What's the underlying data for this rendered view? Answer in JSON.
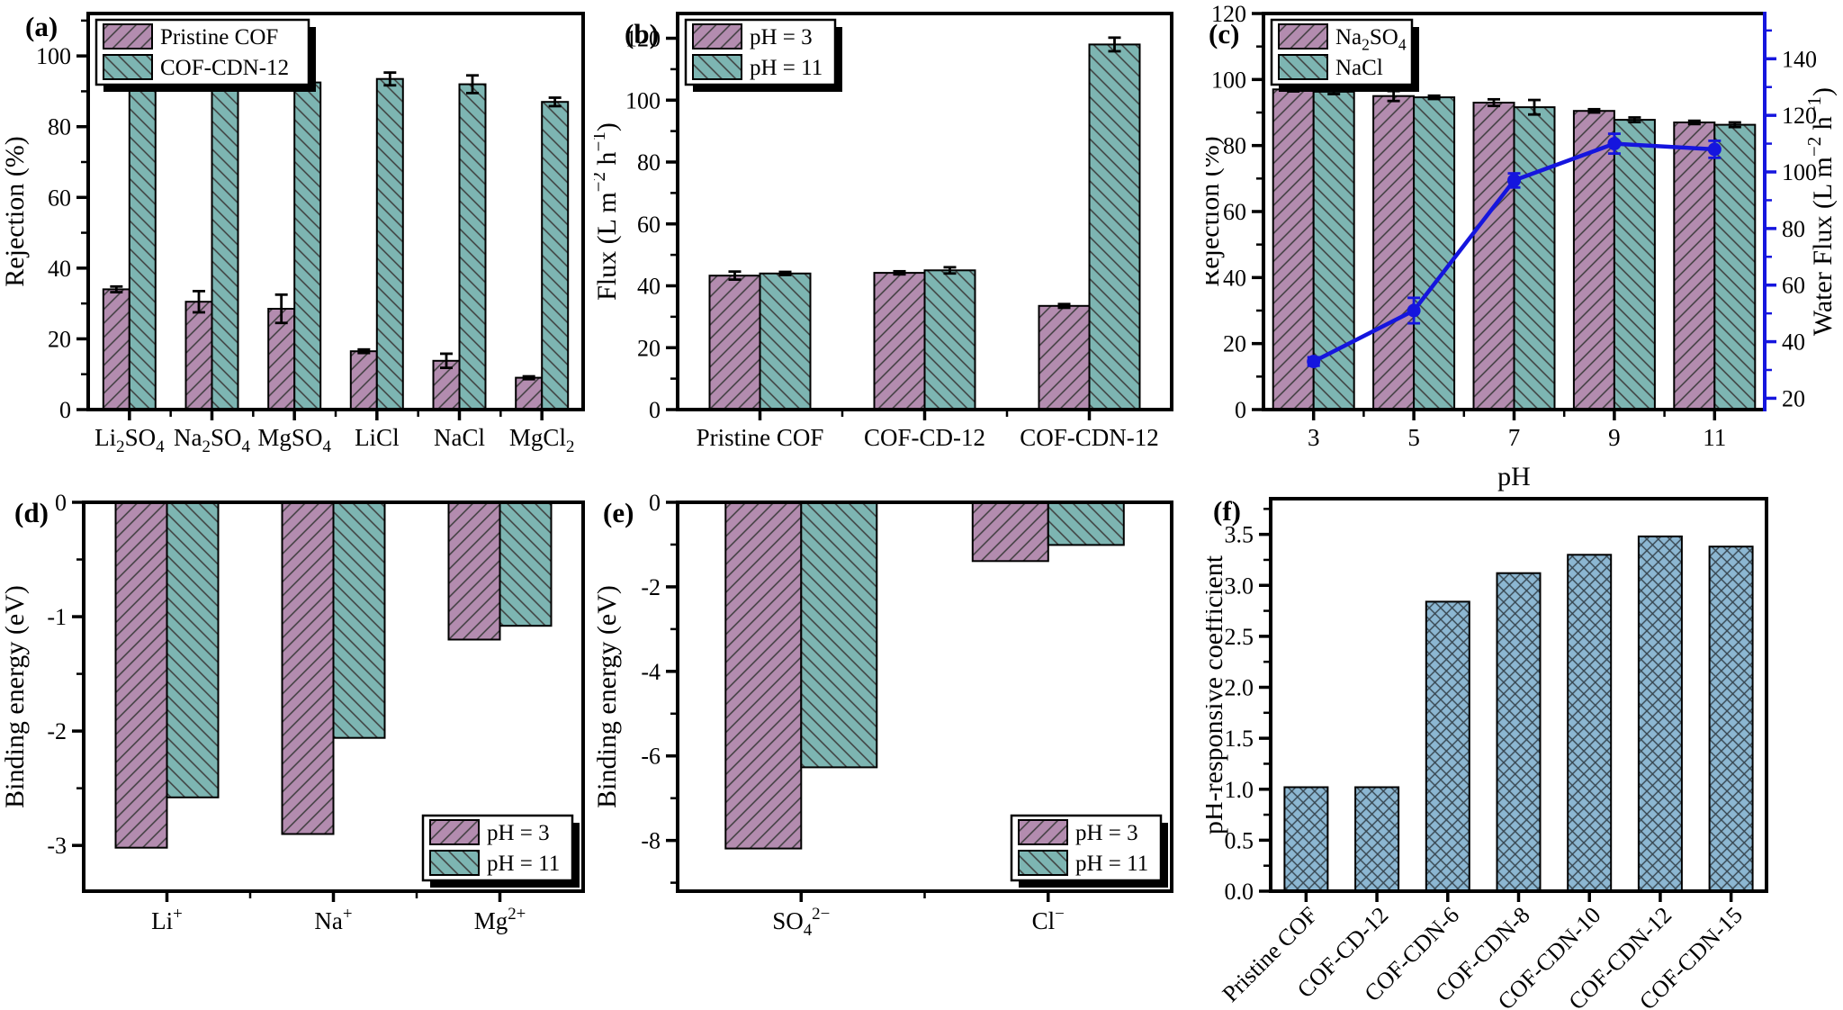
{
  "figure": {
    "background": "#ffffff"
  },
  "colors": {
    "purple": "#B38CAF",
    "teal": "#7DB5B2",
    "blue_bar": "#8CB7D2",
    "line_blue": "#1515DE",
    "hatch": "#3C3C3C",
    "hatch_blue": "#36454F",
    "axis": "#000000"
  },
  "chart_data": [
    {
      "panel": "(a)",
      "type": "bar",
      "ylabel": "Rejection (%)",
      "ylim": [
        0,
        112
      ],
      "yticks": [
        0,
        20,
        40,
        60,
        80,
        100
      ],
      "y_minor_step": 10,
      "categories": [
        "Li~2~SO~4~",
        "Na~2~SO~4~",
        "MgSO~4~",
        "LiCl",
        "NaCl",
        "MgCl~2~"
      ],
      "series": [
        {
          "name": "Pristine COF",
          "color": "purple",
          "hatch": "/",
          "values": [
            34,
            30.5,
            28.5,
            16.5,
            13.8,
            9
          ],
          "errors": [
            0.8,
            3,
            4,
            0.5,
            2,
            0.4
          ]
        },
        {
          "name": "COF-CDN-12",
          "color": "teal",
          "hatch": "\\",
          "values": [
            94,
            93.5,
            92.5,
            93.5,
            92,
            87
          ],
          "errors": [
            0.6,
            1,
            0.4,
            1.8,
            2.5,
            1.2
          ]
        }
      ],
      "legend_pos": "top-left"
    },
    {
      "panel": "(b)",
      "type": "bar",
      "ylabel": "Flux (L m^−2^ h^−1^)",
      "ylim": [
        0,
        128
      ],
      "yticks": [
        0,
        20,
        40,
        60,
        80,
        100,
        120
      ],
      "y_minor_step": 10,
      "categories": [
        "Pristine COF",
        "COF-CD-12",
        "COF-CDN-12"
      ],
      "series": [
        {
          "name": "pH = 3",
          "color": "purple",
          "hatch": "/",
          "values": [
            43.3,
            44.2,
            33.5
          ],
          "errors": [
            1.3,
            0.5,
            0.6
          ]
        },
        {
          "name": "pH = 11",
          "color": "teal",
          "hatch": "\\",
          "values": [
            44,
            45,
            118
          ],
          "errors": [
            0.5,
            1,
            2.2
          ]
        }
      ],
      "legend_pos": "top-left"
    },
    {
      "panel": "(c)",
      "type": "bar",
      "ylabel": "Rejection (%)",
      "xlabel": "pH",
      "ylim": [
        0,
        120
      ],
      "yticks": [
        0,
        20,
        40,
        60,
        80,
        100,
        120
      ],
      "y_minor_step": 10,
      "categories": [
        "3",
        "5",
        "7",
        "9",
        "11"
      ],
      "series": [
        {
          "name": "Na~2~SO~4~",
          "color": "purple",
          "hatch": "/",
          "values": [
            97,
            95,
            93,
            90.5,
            87
          ],
          "errors": [
            0.6,
            1.5,
            1,
            0.5,
            0.5
          ]
        },
        {
          "name": "NaCl",
          "color": "teal",
          "hatch": "\\",
          "values": [
            96.3,
            94.6,
            91.6,
            87.8,
            86.3
          ],
          "errors": [
            0.7,
            0.5,
            2.2,
            0.7,
            0.7
          ]
        }
      ],
      "line_series": {
        "name": "Water Flux",
        "values": [
          33,
          51,
          97,
          110,
          108
        ],
        "errors": [
          1.5,
          4.5,
          2.5,
          3.5,
          3
        ]
      },
      "right_axis": {
        "label": "Water Flux (L m^−2^ h^−1^)",
        "lim": [
          16,
          156
        ],
        "ticks": [
          20,
          40,
          60,
          80,
          100,
          120,
          140
        ],
        "minor_step": 10
      },
      "legend_pos": "top-left"
    },
    {
      "panel": "(d)",
      "type": "bar",
      "ylabel": "Binding energy (eV)",
      "ylim": [
        -3.4,
        0
      ],
      "yticks": [
        0,
        -1,
        -2,
        -3
      ],
      "y_minor_step": 0.5,
      "categories": [
        "Li^+^",
        "Na^+^",
        "Mg^2+^"
      ],
      "series": [
        {
          "name": "pH = 3",
          "color": "purple",
          "hatch": "/",
          "values": [
            -3.02,
            -2.9,
            -1.2
          ]
        },
        {
          "name": "pH = 11",
          "color": "teal",
          "hatch": "\\",
          "values": [
            -2.58,
            -2.06,
            -1.08
          ]
        }
      ],
      "legend_pos": "bottom-right"
    },
    {
      "panel": "(e)",
      "type": "bar",
      "ylabel": "Binding energy (eV)",
      "ylim": [
        -9.2,
        0
      ],
      "yticks": [
        0,
        -2,
        -4,
        -6,
        -8
      ],
      "y_minor_step": 1,
      "categories": [
        "SO~4~^2−^",
        "Cl^−^"
      ],
      "series": [
        {
          "name": "pH = 3",
          "color": "purple",
          "hatch": "/",
          "values": [
            -8.19,
            -1.39
          ]
        },
        {
          "name": "pH = 11",
          "color": "teal",
          "hatch": "\\",
          "values": [
            -6.27,
            -1.01
          ]
        }
      ],
      "legend_pos": "bottom-right"
    },
    {
      "panel": "(f)",
      "type": "bar",
      "ylabel": "pH-responsive coefficient",
      "ylim": [
        0,
        3.85
      ],
      "yticks": [
        0,
        0.5,
        1,
        1.5,
        2,
        2.5,
        3,
        3.5
      ],
      "y_minor_step": 0.25,
      "ytick_decimals": 1,
      "categories": [
        "Pristine COF",
        "COF-CD-12",
        "COF-CDN-6",
        "COF-CDN-8",
        "COF-CDN-10",
        "COF-CDN-12",
        "COF-CDN-15"
      ],
      "series": [
        {
          "name": "",
          "color": "blue_bar",
          "hatch": "x",
          "values": [
            1.02,
            1.02,
            2.84,
            3.12,
            3.3,
            3.48,
            3.38
          ]
        }
      ],
      "rotate_xticks": true
    }
  ]
}
